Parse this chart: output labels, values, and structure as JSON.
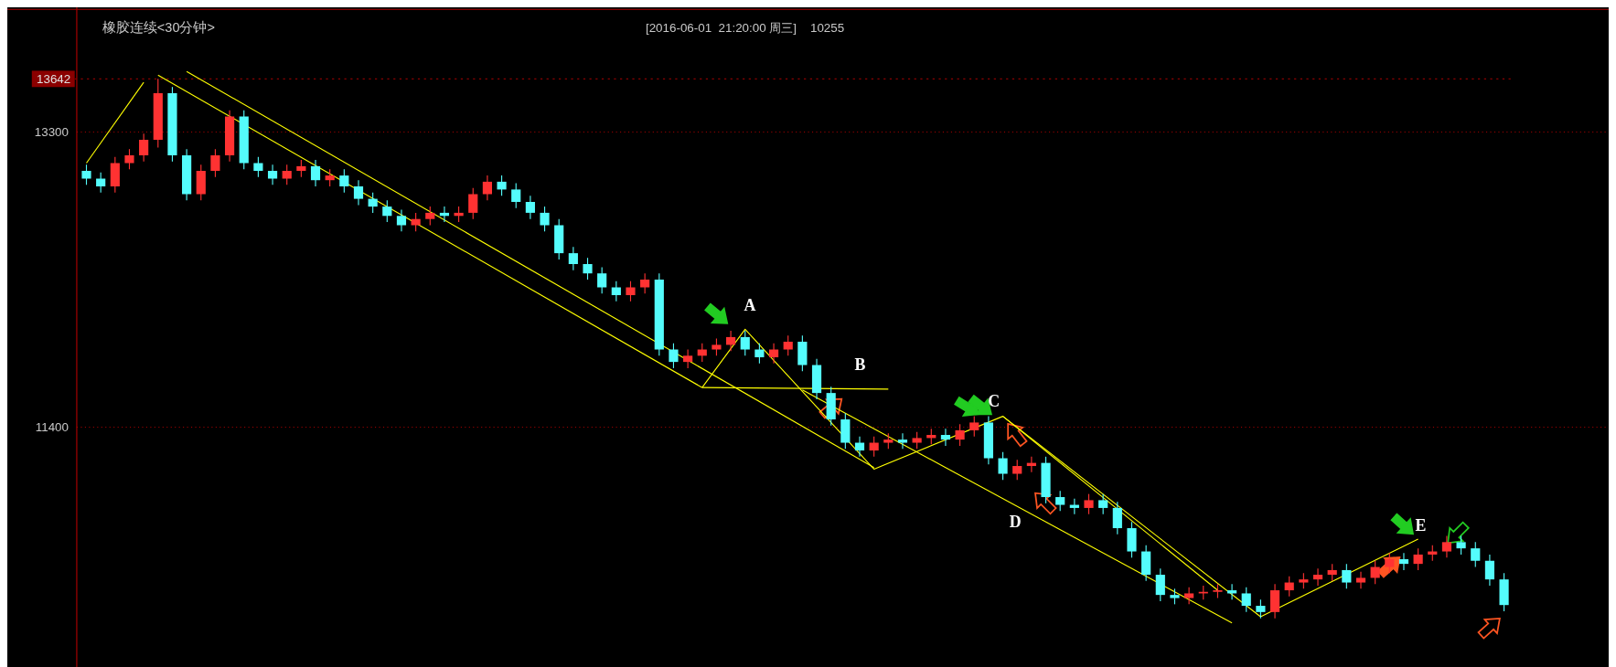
{
  "chart_data": {
    "type": "candlestick",
    "title": "橡胶连续<30分钟>",
    "subtitle": "[2016-06-01  21:20:00 周三]    10255",
    "categories": [
      null,
      null,
      null,
      null,
      null,
      null,
      null,
      null,
      null,
      null,
      null,
      null,
      null,
      null,
      null,
      null,
      null,
      null,
      null,
      null,
      null,
      null,
      null,
      null,
      null,
      null,
      null,
      null,
      null,
      null,
      null,
      null,
      null,
      null,
      null,
      null,
      null,
      null,
      null,
      null,
      null,
      null,
      null,
      null,
      null,
      null,
      null,
      null,
      null,
      null,
      null,
      null,
      null,
      null,
      null,
      null,
      null,
      null,
      null,
      null,
      null,
      null,
      null,
      null,
      null,
      null,
      null,
      null,
      null,
      null,
      null,
      null,
      null,
      null,
      null,
      null,
      null,
      null,
      null,
      null,
      null,
      null,
      null,
      null,
      null,
      null,
      null,
      null,
      null,
      null,
      null,
      null,
      null,
      null,
      null,
      null,
      null,
      null,
      null,
      null
    ],
    "ohlc": [
      [
        13050,
        13090,
        12960,
        13000
      ],
      [
        13000,
        13040,
        12910,
        12950
      ],
      [
        12950,
        13140,
        12910,
        13100
      ],
      [
        13100,
        13190,
        13060,
        13150
      ],
      [
        13150,
        13290,
        13110,
        13250
      ],
      [
        13250,
        13642,
        13200,
        13550
      ],
      [
        13550,
        13590,
        13110,
        13150
      ],
      [
        13150,
        13190,
        12860,
        12900
      ],
      [
        12900,
        13090,
        12860,
        13050
      ],
      [
        13050,
        13190,
        13010,
        13150
      ],
      [
        13150,
        13440,
        13110,
        13400
      ],
      [
        13400,
        13440,
        13060,
        13100
      ],
      [
        13100,
        13140,
        13010,
        13050
      ],
      [
        13050,
        13090,
        12960,
        13000
      ],
      [
        13000,
        13090,
        12960,
        13050
      ],
      [
        13050,
        13120,
        13010,
        13080
      ],
      [
        13080,
        13120,
        12950,
        12990
      ],
      [
        12990,
        13060,
        12950,
        13020
      ],
      [
        13020,
        13060,
        12910,
        12950
      ],
      [
        12950,
        12990,
        12830,
        12870
      ],
      [
        12870,
        12910,
        12780,
        12820
      ],
      [
        12820,
        12860,
        12720,
        12760
      ],
      [
        12760,
        12800,
        12660,
        12700
      ],
      [
        12700,
        12780,
        12660,
        12740
      ],
      [
        12740,
        12820,
        12700,
        12780
      ],
      [
        12780,
        12820,
        12720,
        12760
      ],
      [
        12760,
        12820,
        12720,
        12780
      ],
      [
        12780,
        12940,
        12740,
        12900
      ],
      [
        12900,
        13020,
        12860,
        12980
      ],
      [
        12980,
        13020,
        12890,
        12930
      ],
      [
        12930,
        12970,
        12810,
        12850
      ],
      [
        12850,
        12890,
        12740,
        12780
      ],
      [
        12780,
        12820,
        12660,
        12700
      ],
      [
        12700,
        12740,
        12480,
        12520
      ],
      [
        12520,
        12560,
        12410,
        12450
      ],
      [
        12450,
        12490,
        12350,
        12390
      ],
      [
        12390,
        12430,
        12260,
        12300
      ],
      [
        12300,
        12340,
        12210,
        12250
      ],
      [
        12250,
        12340,
        12210,
        12300
      ],
      [
        12300,
        12390,
        12260,
        12350
      ],
      [
        12350,
        12390,
        11860,
        11900
      ],
      [
        11900,
        11940,
        11780,
        11820
      ],
      [
        11820,
        11900,
        11780,
        11860
      ],
      [
        11860,
        11940,
        11820,
        11900
      ],
      [
        11900,
        11970,
        11860,
        11930
      ],
      [
        11930,
        12020,
        11890,
        11980
      ],
      [
        11980,
        12020,
        11860,
        11900
      ],
      [
        11900,
        11940,
        11810,
        11850
      ],
      [
        11850,
        11940,
        11810,
        11900
      ],
      [
        11900,
        11990,
        11860,
        11950
      ],
      [
        11950,
        11990,
        11760,
        11800
      ],
      [
        11800,
        11840,
        11580,
        11620
      ],
      [
        11620,
        11660,
        11410,
        11450
      ],
      [
        11450,
        11490,
        11260,
        11300
      ],
      [
        11300,
        11340,
        11210,
        11250
      ],
      [
        11250,
        11340,
        11210,
        11300
      ],
      [
        11300,
        11360,
        11260,
        11320
      ],
      [
        11320,
        11360,
        11260,
        11300
      ],
      [
        11300,
        11370,
        11260,
        11330
      ],
      [
        11330,
        11390,
        11290,
        11350
      ],
      [
        11350,
        11390,
        11280,
        11320
      ],
      [
        11320,
        11420,
        11280,
        11380
      ],
      [
        11380,
        11470,
        11340,
        11430
      ],
      [
        11430,
        11470,
        11160,
        11200
      ],
      [
        11200,
        11240,
        11060,
        11100
      ],
      [
        11100,
        11190,
        11060,
        11150
      ],
      [
        11150,
        11210,
        11110,
        11170
      ],
      [
        11170,
        11210,
        10910,
        10950
      ],
      [
        10950,
        10990,
        10860,
        10900
      ],
      [
        10900,
        10940,
        10840,
        10880
      ],
      [
        10880,
        10970,
        10840,
        10930
      ],
      [
        10930,
        10970,
        10840,
        10880
      ],
      [
        10880,
        10920,
        10710,
        10750
      ],
      [
        10750,
        10790,
        10560,
        10600
      ],
      [
        10600,
        10640,
        10410,
        10450
      ],
      [
        10450,
        10490,
        10280,
        10320
      ],
      [
        10320,
        10360,
        10260,
        10300
      ],
      [
        10300,
        10370,
        10260,
        10330
      ],
      [
        10330,
        10380,
        10290,
        10340
      ],
      [
        10340,
        10390,
        10300,
        10350
      ],
      [
        10350,
        10390,
        10290,
        10330
      ],
      [
        10330,
        10370,
        10210,
        10250
      ],
      [
        10250,
        10290,
        10170,
        10210
      ],
      [
        10210,
        10390,
        10170,
        10350
      ],
      [
        10350,
        10440,
        10310,
        10400
      ],
      [
        10400,
        10460,
        10360,
        10420
      ],
      [
        10420,
        10490,
        10380,
        10450
      ],
      [
        10450,
        10520,
        10410,
        10480
      ],
      [
        10480,
        10520,
        10360,
        10400
      ],
      [
        10400,
        10470,
        10360,
        10430
      ],
      [
        10430,
        10540,
        10390,
        10500
      ],
      [
        10500,
        10590,
        10460,
        10550
      ],
      [
        10550,
        10590,
        10480,
        10520
      ],
      [
        10520,
        10620,
        10480,
        10580
      ],
      [
        10580,
        10640,
        10540,
        10600
      ],
      [
        10600,
        10700,
        10560,
        10660
      ],
      [
        10660,
        10700,
        10580,
        10620
      ],
      [
        10620,
        10660,
        10500,
        10540
      ],
      [
        10540,
        10580,
        10380,
        10420
      ],
      [
        10420,
        10460,
        10215,
        10255
      ]
    ],
    "colors": [
      "#54fcfc",
      "#54fcfc",
      "#ff3232",
      "#ff3232",
      "#ff3232",
      "#ff3232",
      "#54fcfc",
      "#54fcfc",
      "#ff3232",
      "#ff3232",
      "#ff3232",
      "#54fcfc",
      "#54fcfc",
      "#54fcfc",
      "#ff3232",
      "#ff3232",
      "#54fcfc",
      "#ff3232",
      "#54fcfc",
      "#54fcfc",
      "#54fcfc",
      "#54fcfc",
      "#54fcfc",
      "#ff3232",
      "#ff3232",
      "#54fcfc",
      "#ff3232",
      "#ff3232",
      "#ff3232",
      "#54fcfc",
      "#54fcfc",
      "#54fcfc",
      "#54fcfc",
      "#54fcfc",
      "#54fcfc",
      "#54fcfc",
      "#54fcfc",
      "#54fcfc",
      "#ff3232",
      "#ff3232",
      "#54fcfc",
      "#54fcfc",
      "#ff3232",
      "#ff3232",
      "#ff3232",
      "#ff3232",
      "#54fcfc",
      "#54fcfc",
      "#ff3232",
      "#ff3232",
      "#54fcfc",
      "#54fcfc",
      "#54fcfc",
      "#54fcfc",
      "#54fcfc",
      "#ff3232",
      "#ff3232",
      "#54fcfc",
      "#ff3232",
      "#ff3232",
      "#54fcfc",
      "#ff3232",
      "#ff3232",
      "#54fcfc",
      "#54fcfc",
      "#ff3232",
      "#ff3232",
      "#54fcfc",
      "#54fcfc",
      "#54fcfc",
      "#ff3232",
      "#54fcfc",
      "#54fcfc",
      "#54fcfc",
      "#54fcfc",
      "#54fcfc",
      "#54fcfc",
      "#ff3232",
      "#ff3232",
      "#ff3232",
      "#54fcfc",
      "#54fcfc",
      "#54fcfc",
      "#ff3232",
      "#ff3232",
      "#ff3232",
      "#ff3232",
      "#ff3232",
      "#54fcfc",
      "#ff3232",
      "#ff3232",
      "#ff3232",
      "#54fcfc",
      "#ff3232",
      "#ff3232",
      "#ff3232",
      "#54fcfc",
      "#54fcfc",
      "#54fcfc",
      "#54fcfc"
    ],
    "series": [
      {
        "type": "line",
        "color": "#ffff00",
        "values": [
          13100,
          null,
          null,
          null,
          13620,
          null,
          null,
          null,
          null,
          null,
          null,
          null,
          null,
          null,
          null,
          null,
          null,
          null,
          null,
          null,
          null,
          null,
          null,
          null,
          null,
          null,
          null,
          null,
          null,
          null,
          null,
          null,
          null,
          null,
          null,
          null,
          null,
          null,
          null,
          null,
          null,
          null,
          null,
          null,
          null,
          null,
          null,
          null,
          null,
          null,
          null,
          null,
          null,
          null,
          null,
          null,
          null,
          null,
          null,
          null,
          null,
          null,
          null,
          null,
          null,
          null,
          null,
          null,
          null,
          null,
          null,
          null,
          null,
          null,
          null,
          null,
          null,
          null,
          null,
          null,
          null,
          null,
          null,
          null,
          null,
          null,
          null,
          null,
          null,
          null,
          null,
          null,
          null,
          null,
          null,
          null,
          null,
          null,
          null,
          null
        ]
      },
      {
        "type": "line",
        "color": "#ffff00",
        "values": [
          null,
          null,
          null,
          null,
          null,
          13666,
          null,
          null,
          null,
          null,
          null,
          null,
          null,
          null,
          null,
          null,
          null,
          null,
          null,
          null,
          null,
          null,
          null,
          null,
          null,
          null,
          null,
          null,
          null,
          null,
          null,
          null,
          null,
          null,
          null,
          null,
          null,
          null,
          null,
          null,
          null,
          null,
          null,
          11655,
          null,
          null,
          null,
          null,
          null,
          null,
          null,
          null,
          null,
          null,
          null,
          null,
          null,
          null,
          null,
          null,
          null,
          null,
          null,
          null,
          null,
          null,
          null,
          null,
          null,
          null,
          null,
          null,
          null,
          null,
          null,
          null,
          null,
          null,
          null,
          null,
          null,
          null,
          null,
          null,
          null,
          null,
          null,
          null,
          null,
          null,
          null,
          null,
          null,
          null,
          null,
          null,
          null,
          null,
          null,
          null
        ]
      },
      {
        "type": "line",
        "color": "#ffff00",
        "values": [
          null,
          null,
          null,
          null,
          null,
          null,
          null,
          13690,
          null,
          null,
          null,
          null,
          null,
          null,
          null,
          null,
          null,
          null,
          null,
          null,
          null,
          null,
          null,
          null,
          null,
          null,
          null,
          null,
          null,
          null,
          null,
          null,
          null,
          null,
          null,
          null,
          null,
          null,
          null,
          null,
          null,
          null,
          null,
          null,
          null,
          null,
          null,
          null,
          null,
          null,
          null,
          null,
          null,
          null,
          null,
          11140,
          null,
          null,
          null,
          null,
          null,
          null,
          null,
          null,
          null,
          null,
          null,
          null,
          null,
          null,
          null,
          null,
          null,
          null,
          null,
          null,
          null,
          null,
          null,
          null,
          null,
          null,
          null,
          null,
          null,
          null,
          null,
          null,
          null,
          null,
          null,
          null,
          null,
          null,
          null,
          null,
          null,
          null,
          null,
          null
        ]
      },
      {
        "type": "line",
        "color": "#ffff00",
        "values": [
          null,
          null,
          null,
          null,
          null,
          null,
          null,
          null,
          null,
          null,
          null,
          null,
          null,
          null,
          null,
          null,
          null,
          null,
          null,
          null,
          null,
          null,
          null,
          null,
          null,
          null,
          null,
          null,
          null,
          null,
          null,
          null,
          null,
          null,
          null,
          null,
          null,
          null,
          null,
          null,
          null,
          null,
          null,
          11655,
          null,
          null,
          12030,
          null,
          null,
          null,
          null,
          null,
          null,
          null,
          null,
          11130,
          null,
          null,
          null,
          null,
          null,
          null,
          null,
          null,
          11470,
          null,
          null,
          null,
          null,
          null,
          null,
          null,
          null,
          null,
          null,
          null,
          null,
          null,
          null,
          null,
          null,
          null,
          10180,
          null,
          null,
          null,
          null,
          null,
          null,
          null,
          null,
          null,
          null,
          10680,
          null,
          null,
          null,
          null,
          null,
          null
        ]
      },
      {
        "type": "line",
        "color": "#ffff00",
        "values": [
          null,
          null,
          null,
          null,
          null,
          null,
          null,
          null,
          null,
          null,
          null,
          null,
          null,
          null,
          null,
          null,
          null,
          null,
          null,
          null,
          null,
          null,
          null,
          null,
          null,
          null,
          null,
          null,
          null,
          null,
          null,
          null,
          null,
          null,
          null,
          null,
          null,
          null,
          null,
          null,
          null,
          null,
          null,
          11655,
          null,
          null,
          null,
          null,
          null,
          null,
          null,
          null,
          null,
          null,
          null,
          null,
          11645,
          null,
          null,
          null,
          null,
          null,
          null,
          null,
          null,
          null,
          null,
          null,
          null,
          null,
          null,
          null,
          null,
          null,
          null,
          null,
          null,
          null,
          null,
          null,
          null,
          null,
          null,
          null,
          null,
          null,
          null,
          null,
          null,
          null,
          null,
          null,
          null,
          null,
          null,
          null,
          null,
          null,
          null,
          null
        ]
      },
      {
        "type": "line",
        "color": "#ffff00",
        "values": [
          null,
          null,
          null,
          null,
          null,
          null,
          null,
          null,
          null,
          null,
          null,
          null,
          null,
          null,
          null,
          null,
          null,
          null,
          null,
          null,
          null,
          null,
          null,
          null,
          null,
          null,
          null,
          null,
          null,
          null,
          null,
          null,
          null,
          null,
          null,
          null,
          null,
          null,
          null,
          null,
          null,
          null,
          null,
          null,
          null,
          null,
          null,
          null,
          null,
          null,
          11640,
          null,
          null,
          null,
          null,
          null,
          null,
          null,
          null,
          null,
          null,
          null,
          null,
          null,
          null,
          null,
          null,
          null,
          null,
          null,
          null,
          null,
          null,
          null,
          null,
          null,
          null,
          null,
          null,
          null,
          10140,
          null,
          null,
          null,
          null,
          null,
          null,
          null,
          null,
          null,
          null,
          null,
          null,
          null,
          null,
          null,
          null,
          null,
          null,
          null
        ]
      },
      {
        "type": "line",
        "color": "#ffff00",
        "values": [
          null,
          null,
          null,
          null,
          null,
          null,
          null,
          null,
          null,
          null,
          null,
          null,
          null,
          null,
          null,
          null,
          null,
          null,
          null,
          null,
          null,
          null,
          null,
          null,
          null,
          null,
          null,
          null,
          null,
          null,
          null,
          null,
          null,
          null,
          null,
          null,
          null,
          null,
          null,
          null,
          null,
          null,
          null,
          null,
          null,
          null,
          null,
          null,
          null,
          null,
          null,
          null,
          null,
          null,
          null,
          null,
          null,
          null,
          null,
          null,
          null,
          null,
          null,
          null,
          11470,
          null,
          null,
          null,
          null,
          null,
          null,
          null,
          null,
          null,
          null,
          null,
          null,
          null,
          null,
          10350,
          null,
          null,
          null,
          null,
          null,
          null,
          null,
          null,
          null,
          null,
          null,
          null,
          null,
          null,
          null,
          null,
          null,
          null,
          null,
          null
        ]
      }
    ],
    "ylim": [
      9870,
      14070
    ],
    "yticks": [
      13300,
      11400
    ],
    "grid": "y",
    "ref_lines": [
      {
        "axis": "y",
        "value": 13642,
        "label": "13642",
        "color": "#8b0000"
      }
    ],
    "annotations": [
      "A",
      "B",
      "C",
      "D",
      "E"
    ]
  }
}
